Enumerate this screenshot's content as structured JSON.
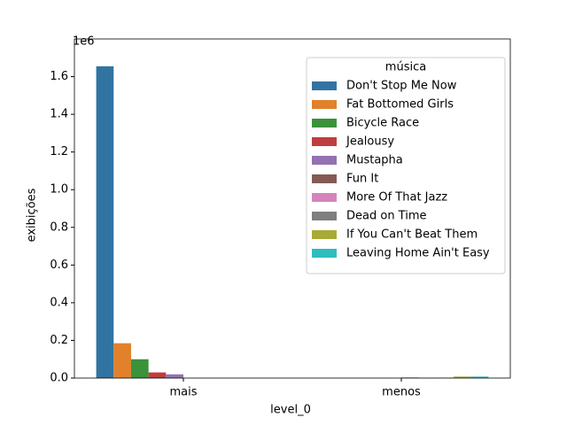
{
  "chart_data": {
    "type": "bar",
    "y_offset_label": "1e6",
    "x_label": "level_0",
    "y_label": "exibições",
    "categories": [
      "mais",
      "menos"
    ],
    "legend_title": "música",
    "legend_position": "upper right",
    "series": [
      {
        "name": "Don't Stop Me Now",
        "color": "#3274a1",
        "values": [
          1655000,
          null
        ]
      },
      {
        "name": "Fat Bottomed Girls",
        "color": "#e1812c",
        "values": [
          185000,
          null
        ]
      },
      {
        "name": "Bicycle Race",
        "color": "#3a923a",
        "values": [
          100000,
          null
        ]
      },
      {
        "name": "Jealousy",
        "color": "#c03d3e",
        "values": [
          30000,
          null
        ]
      },
      {
        "name": "Mustapha",
        "color": "#9372b2",
        "values": [
          20000,
          null
        ]
      },
      {
        "name": "Fun It",
        "color": "#845b53",
        "values": [
          null,
          3000
        ]
      },
      {
        "name": "More Of That Jazz",
        "color": "#d684bd",
        "values": [
          null,
          2000
        ]
      },
      {
        "name": "Dead on Time",
        "color": "#7f7f7f",
        "values": [
          null,
          2000
        ]
      },
      {
        "name": "If You Can't Beat Them",
        "color": "#a9aa35",
        "values": [
          null,
          8000
        ]
      },
      {
        "name": "Leaving Home Ain't Easy",
        "color": "#2ebdbe",
        "values": [
          null,
          8000
        ]
      }
    ],
    "ylim": [
      0,
      1800000
    ],
    "yticks": [
      {
        "value": 0,
        "label": "0.0"
      },
      {
        "value": 200000,
        "label": "0.2"
      },
      {
        "value": 400000,
        "label": "0.4"
      },
      {
        "value": 600000,
        "label": "0.6"
      },
      {
        "value": 800000,
        "label": "0.8"
      },
      {
        "value": 1000000,
        "label": "1.0"
      },
      {
        "value": 1200000,
        "label": "1.2"
      },
      {
        "value": 1400000,
        "label": "1.4"
      },
      {
        "value": 1600000,
        "label": "1.6"
      }
    ]
  }
}
